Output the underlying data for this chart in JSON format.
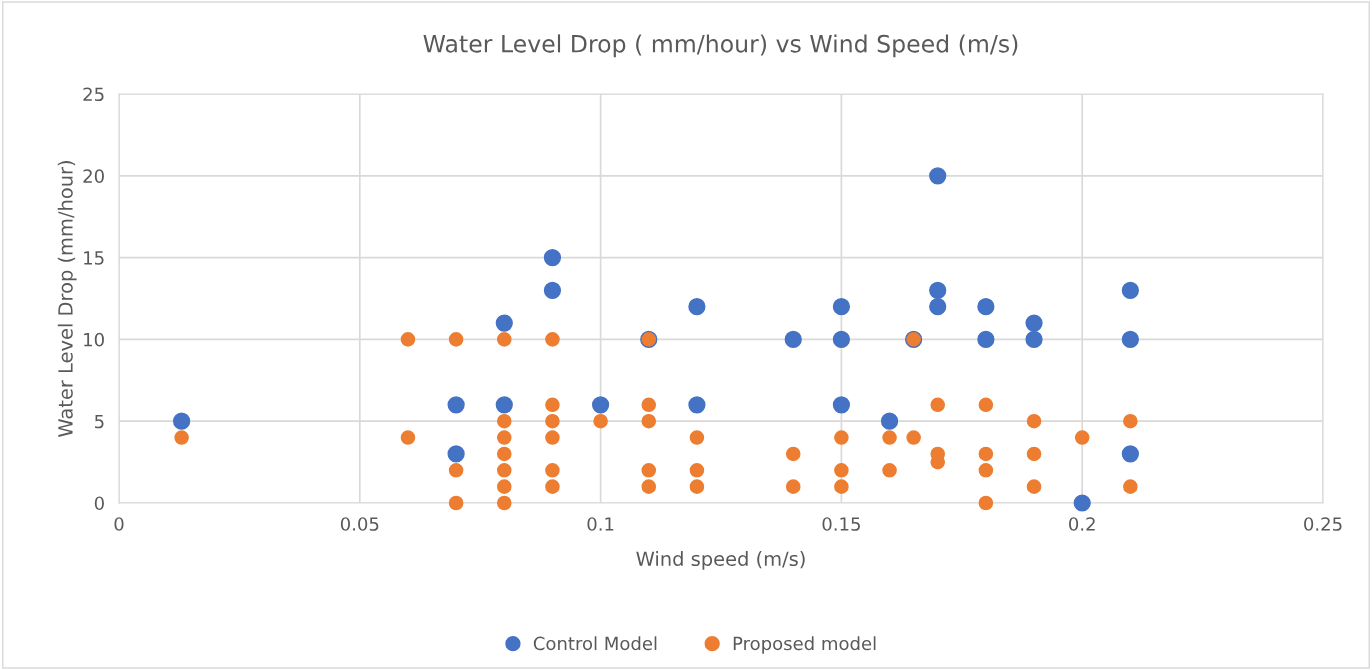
{
  "chart_data": {
    "type": "scatter",
    "title": "Water Level Drop ( mm/hour) vs Wind Speed (m/s)",
    "xlabel": "Wind speed (m/s)",
    "ylabel": "Water Level Drop (mm/hour)",
    "xlim": [
      0,
      0.25
    ],
    "xticks": [
      0,
      0.05,
      0.1,
      0.15,
      0.2,
      0.25
    ],
    "ylim": [
      0,
      25
    ],
    "yticks": [
      0,
      5,
      10,
      15,
      20,
      25
    ],
    "grid": true,
    "legend": "bottom",
    "marker": "circle",
    "series": [
      {
        "name": "Control Model",
        "color": "#4472c4",
        "x": [
          0.013,
          0.07,
          0.07,
          0.08,
          0.08,
          0.09,
          0.09,
          0.1,
          0.11,
          0.12,
          0.12,
          0.14,
          0.15,
          0.15,
          0.15,
          0.16,
          0.165,
          0.17,
          0.17,
          0.17,
          0.18,
          0.18,
          0.19,
          0.19,
          0.2,
          0.21,
          0.21,
          0.21
        ],
        "values": [
          5,
          6,
          3,
          11,
          6,
          15,
          13,
          6,
          10,
          12,
          6,
          10,
          12,
          10,
          6,
          5,
          10,
          20,
          13,
          12,
          12,
          10,
          11,
          10,
          0,
          13,
          10,
          3
        ]
      },
      {
        "name": "Proposed model",
        "color": "#ed7d31",
        "x": [
          0.013,
          0.06,
          0.06,
          0.07,
          0.07,
          0.07,
          0.08,
          0.08,
          0.08,
          0.08,
          0.08,
          0.08,
          0.08,
          0.09,
          0.09,
          0.09,
          0.09,
          0.09,
          0.09,
          0.1,
          0.11,
          0.11,
          0.11,
          0.11,
          0.11,
          0.12,
          0.12,
          0.12,
          0.14,
          0.14,
          0.15,
          0.15,
          0.15,
          0.16,
          0.16,
          0.165,
          0.165,
          0.17,
          0.17,
          0.17,
          0.18,
          0.18,
          0.18,
          0.18,
          0.19,
          0.19,
          0.19,
          0.2,
          0.21,
          0.21
        ],
        "values": [
          4,
          10,
          4,
          10,
          2,
          0,
          10,
          5,
          4,
          3,
          2,
          1,
          0,
          10,
          6,
          5,
          4,
          2,
          1,
          5,
          10,
          6,
          5,
          2,
          1,
          4,
          2,
          1,
          3,
          1,
          4,
          2,
          1,
          4,
          2,
          10,
          4,
          6,
          3,
          2.5,
          6,
          3,
          2,
          0,
          5,
          3,
          1,
          4,
          5,
          1
        ]
      }
    ]
  }
}
